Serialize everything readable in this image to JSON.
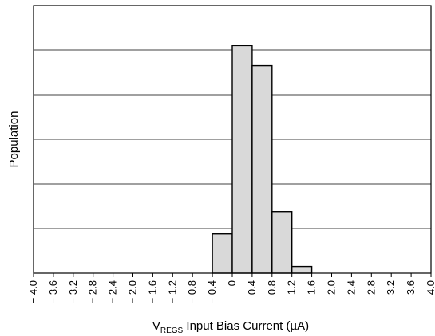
{
  "chart_data": {
    "type": "bar",
    "title": "",
    "xlabel": {
      "main": "V",
      "subscript": "REGS",
      "rest": " Input Bias Current (µA)"
    },
    "ylabel": "Population",
    "xlim": [
      -4.0,
      4.0
    ],
    "x_ticks": [
      -4.0,
      -3.6,
      -3.2,
      -2.8,
      -2.4,
      -2.0,
      -1.6,
      -1.2,
      -0.8,
      -0.4,
      0,
      0.4,
      0.8,
      1.2,
      1.6,
      2.0,
      2.4,
      2.8,
      3.2,
      3.6,
      4.0
    ],
    "x_tick_labels": [
      "− 4.0",
      "− 3.6",
      "− 3.2",
      "− 2.8",
      "− 2.4",
      "− 2.0",
      "− 1.6",
      "− 1.2",
      "− 0.8",
      "− 0.4",
      "0",
      "0.4",
      "0.8",
      "1.2",
      "1.6",
      "2.0",
      "2.4",
      "2.8",
      "3.2",
      "3.6",
      "4.0"
    ],
    "ylim": [
      0,
      6
    ],
    "y_gridlines": [
      1,
      2,
      3,
      4,
      5
    ],
    "grid": "horizontal",
    "y_tick_labels_shown": false,
    "bin_width": 0.4,
    "bins": [
      {
        "x0": -0.4,
        "x1": 0.0,
        "value": 0.88
      },
      {
        "x0": 0.0,
        "x1": 0.4,
        "value": 5.1
      },
      {
        "x0": 0.4,
        "x1": 0.8,
        "value": 4.65
      },
      {
        "x0": 0.8,
        "x1": 1.2,
        "value": 1.38
      },
      {
        "x0": 1.2,
        "x1": 1.6,
        "value": 0.15
      }
    ],
    "colors": {
      "bar_fill": "#d9d9d9",
      "bar_stroke": "#000000",
      "grid": "#000000"
    }
  }
}
